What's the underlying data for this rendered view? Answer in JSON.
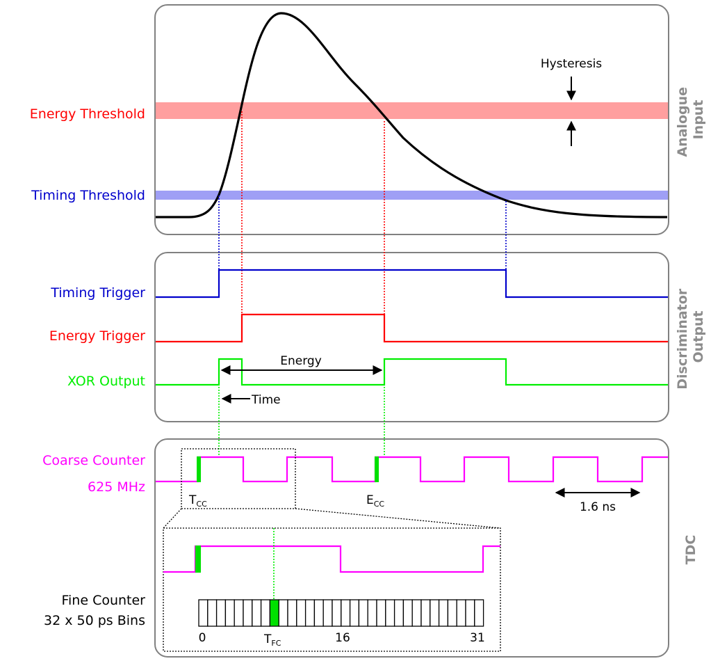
{
  "panels": {
    "analogue": "Analogue\nInput",
    "discriminator": "Discriminator\nOutput",
    "tdc": "TDC"
  },
  "labels": {
    "energy_threshold": "Energy Threshold",
    "timing_threshold": "Timing Threshold",
    "timing_trigger": "Timing Trigger",
    "energy_trigger": "Energy Trigger",
    "xor_output": "XOR Output",
    "coarse_counter": "Coarse Counter",
    "coarse_freq": "625 MHz",
    "fine_counter_line1": "Fine Counter",
    "fine_counter_line2": "32 x 50 ps Bins"
  },
  "annotations": {
    "hysteresis": "Hysteresis",
    "energy": "Energy",
    "time": "Time",
    "period": "1.6 ns",
    "t_cc_main": "T",
    "t_cc_sub": "CC",
    "e_cc_main": "E",
    "e_cc_sub": "CC",
    "t_fc_main": "T",
    "t_fc_sub": "FC"
  },
  "fine_counter": {
    "bins": 32,
    "highlighted_bin": 8,
    "tick_labels": [
      "0",
      "16",
      "31"
    ]
  },
  "colors": {
    "energy": "#ff0000",
    "energy_band": "#ff9f9f",
    "timing": "#0000cc",
    "timing_band": "#9f9ff5",
    "xor": "#00ee00",
    "coarse": "#ff00ff",
    "panel_label": "#8c8c8c",
    "highlight": "#00e000"
  }
}
